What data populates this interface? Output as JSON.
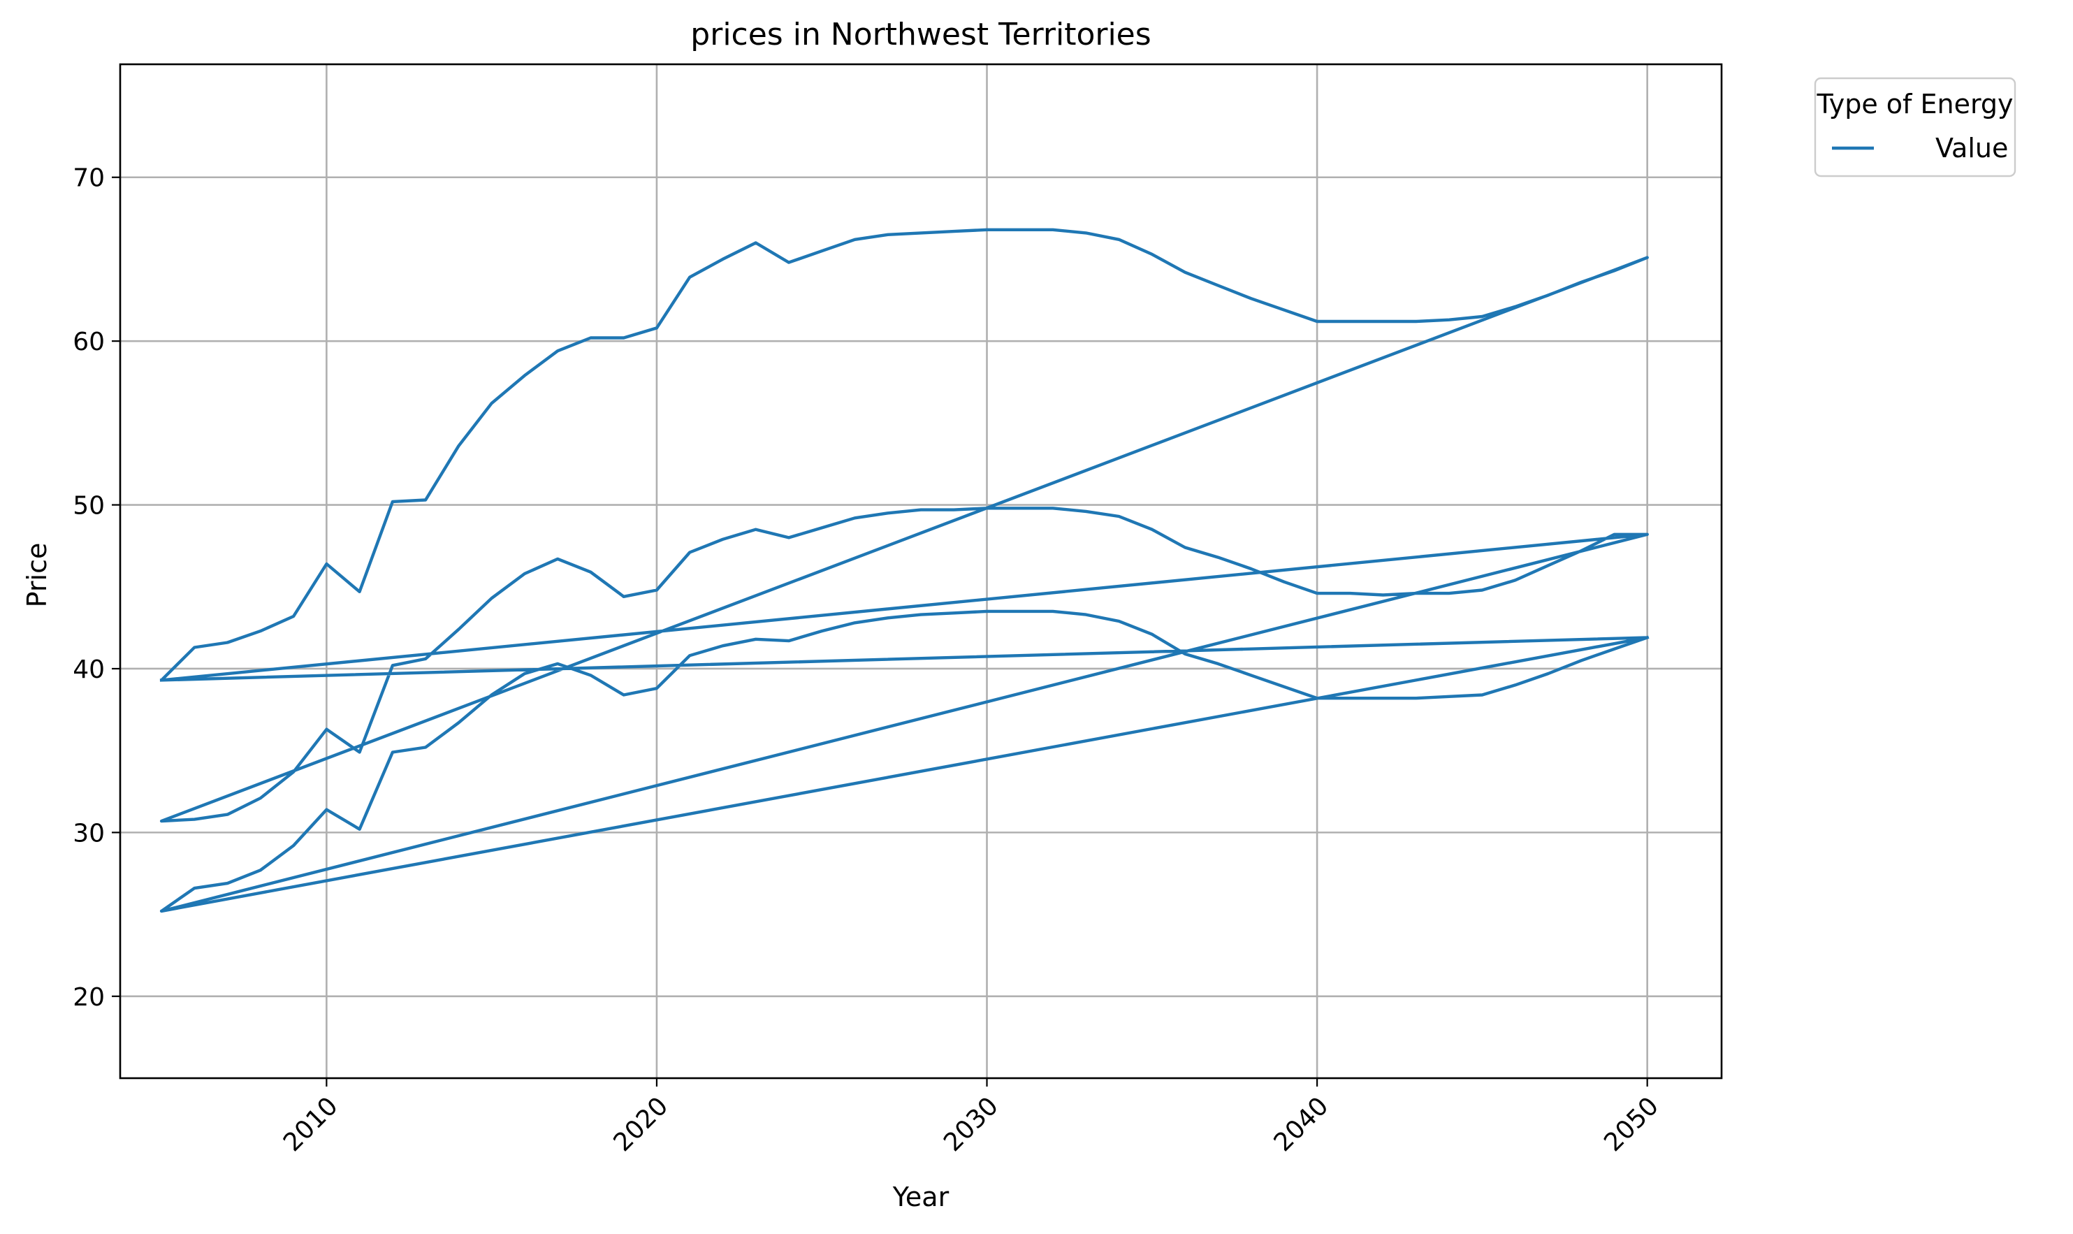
{
  "chart_data": {
    "type": "line",
    "title": "prices in Northwest Territories",
    "xlabel": "Year",
    "ylabel": "Price",
    "xlim": [
      2003.75,
      2052.25
    ],
    "ylim": [
      15.0,
      76.9
    ],
    "xticks": [
      2010,
      2020,
      2030,
      2040,
      2050
    ],
    "xtick_labels": [
      "2010",
      "2020",
      "2030",
      "2040",
      "2050"
    ],
    "yticks": [
      20,
      30,
      40,
      50,
      60,
      70
    ],
    "ytick_labels": [
      "20",
      "30",
      "40",
      "50",
      "60",
      "70"
    ],
    "grid": true,
    "legend": {
      "title": "Type of Energy",
      "placement": "outside-top-right",
      "entries": [
        "Value"
      ]
    },
    "series": [
      {
        "name": "Value",
        "color": "#1f77b4",
        "points": [
          [
            2005,
            39.3
          ],
          [
            2050,
            41.9
          ],
          [
            2005,
            25.2
          ],
          [
            2050,
            48.2
          ],
          [
            2005,
            39.3
          ],
          [
            2006,
            41.3
          ],
          [
            2007,
            41.6
          ],
          [
            2008,
            42.3
          ],
          [
            2009,
            43.2
          ],
          [
            2010,
            46.4
          ],
          [
            2011,
            44.7
          ],
          [
            2012,
            50.2
          ],
          [
            2013,
            50.3
          ],
          [
            2014,
            53.6
          ],
          [
            2015,
            56.2
          ],
          [
            2016,
            57.9
          ],
          [
            2017,
            59.4
          ],
          [
            2018,
            60.2
          ],
          [
            2019,
            60.2
          ],
          [
            2020,
            60.8
          ],
          [
            2021,
            63.9
          ],
          [
            2022,
            65.0
          ],
          [
            2023,
            66.0
          ],
          [
            2024,
            64.8
          ],
          [
            2025,
            65.5
          ],
          [
            2026,
            66.2
          ],
          [
            2027,
            66.5
          ],
          [
            2028,
            66.6
          ],
          [
            2029,
            66.7
          ],
          [
            2030,
            66.8
          ],
          [
            2031,
            66.8
          ],
          [
            2032,
            66.8
          ],
          [
            2033,
            66.6
          ],
          [
            2034,
            66.2
          ],
          [
            2035,
            65.3
          ],
          [
            2036,
            64.2
          ],
          [
            2037,
            63.4
          ],
          [
            2038,
            62.6
          ],
          [
            2039,
            61.9
          ],
          [
            2040,
            61.2
          ],
          [
            2041,
            61.2
          ],
          [
            2042,
            61.2
          ],
          [
            2043,
            61.2
          ],
          [
            2044,
            61.3
          ],
          [
            2045,
            61.5
          ],
          [
            2046,
            62.1
          ],
          [
            2047,
            62.8
          ],
          [
            2048,
            63.6
          ],
          [
            2049,
            64.3
          ],
          [
            2050,
            65.1
          ],
          [
            2005,
            30.7
          ],
          [
            2006,
            30.8
          ],
          [
            2007,
            31.1
          ],
          [
            2008,
            32.1
          ],
          [
            2009,
            33.7
          ],
          [
            2010,
            36.3
          ],
          [
            2011,
            34.9
          ],
          [
            2012,
            40.2
          ],
          [
            2013,
            40.6
          ],
          [
            2014,
            42.4
          ],
          [
            2015,
            44.3
          ],
          [
            2016,
            45.8
          ],
          [
            2017,
            46.7
          ],
          [
            2018,
            45.9
          ],
          [
            2019,
            44.4
          ],
          [
            2020,
            44.8
          ],
          [
            2021,
            47.1
          ],
          [
            2022,
            47.9
          ],
          [
            2023,
            48.5
          ],
          [
            2024,
            48.0
          ],
          [
            2025,
            48.6
          ],
          [
            2026,
            49.2
          ],
          [
            2027,
            49.5
          ],
          [
            2028,
            49.7
          ],
          [
            2029,
            49.7
          ],
          [
            2030,
            49.8
          ],
          [
            2031,
            49.8
          ],
          [
            2032,
            49.8
          ],
          [
            2033,
            49.6
          ],
          [
            2034,
            49.3
          ],
          [
            2035,
            48.5
          ],
          [
            2036,
            47.4
          ],
          [
            2037,
            46.8
          ],
          [
            2038,
            46.1
          ],
          [
            2039,
            45.3
          ],
          [
            2040,
            44.6
          ],
          [
            2041,
            44.6
          ],
          [
            2042,
            44.5
          ],
          [
            2043,
            44.6
          ],
          [
            2044,
            44.6
          ],
          [
            2045,
            44.8
          ],
          [
            2046,
            45.4
          ],
          [
            2047,
            46.3
          ],
          [
            2048,
            47.2
          ],
          [
            2049,
            48.2
          ],
          [
            2050,
            48.2
          ],
          [
            2005,
            25.2
          ],
          [
            2006,
            26.6
          ],
          [
            2007,
            26.9
          ],
          [
            2008,
            27.7
          ],
          [
            2009,
            29.2
          ],
          [
            2010,
            31.4
          ],
          [
            2011,
            30.2
          ],
          [
            2012,
            34.9
          ],
          [
            2013,
            35.2
          ],
          [
            2014,
            36.7
          ],
          [
            2015,
            38.4
          ],
          [
            2016,
            39.7
          ],
          [
            2017,
            40.3
          ],
          [
            2018,
            39.6
          ],
          [
            2019,
            38.4
          ],
          [
            2020,
            38.8
          ],
          [
            2021,
            40.8
          ],
          [
            2022,
            41.4
          ],
          [
            2023,
            41.8
          ],
          [
            2024,
            41.7
          ],
          [
            2025,
            42.3
          ],
          [
            2026,
            42.8
          ],
          [
            2027,
            43.1
          ],
          [
            2028,
            43.3
          ],
          [
            2029,
            43.4
          ],
          [
            2030,
            43.5
          ],
          [
            2031,
            43.5
          ],
          [
            2032,
            43.5
          ],
          [
            2033,
            43.3
          ],
          [
            2034,
            42.9
          ],
          [
            2035,
            42.1
          ],
          [
            2036,
            40.9
          ],
          [
            2037,
            40.3
          ],
          [
            2038,
            39.6
          ],
          [
            2039,
            38.9
          ],
          [
            2040,
            38.2
          ],
          [
            2041,
            38.2
          ],
          [
            2042,
            38.2
          ],
          [
            2043,
            38.2
          ],
          [
            2044,
            38.3
          ],
          [
            2045,
            38.4
          ],
          [
            2046,
            39.0
          ],
          [
            2047,
            39.7
          ],
          [
            2048,
            40.5
          ],
          [
            2049,
            41.2
          ],
          [
            2050,
            41.9
          ]
        ]
      }
    ]
  }
}
